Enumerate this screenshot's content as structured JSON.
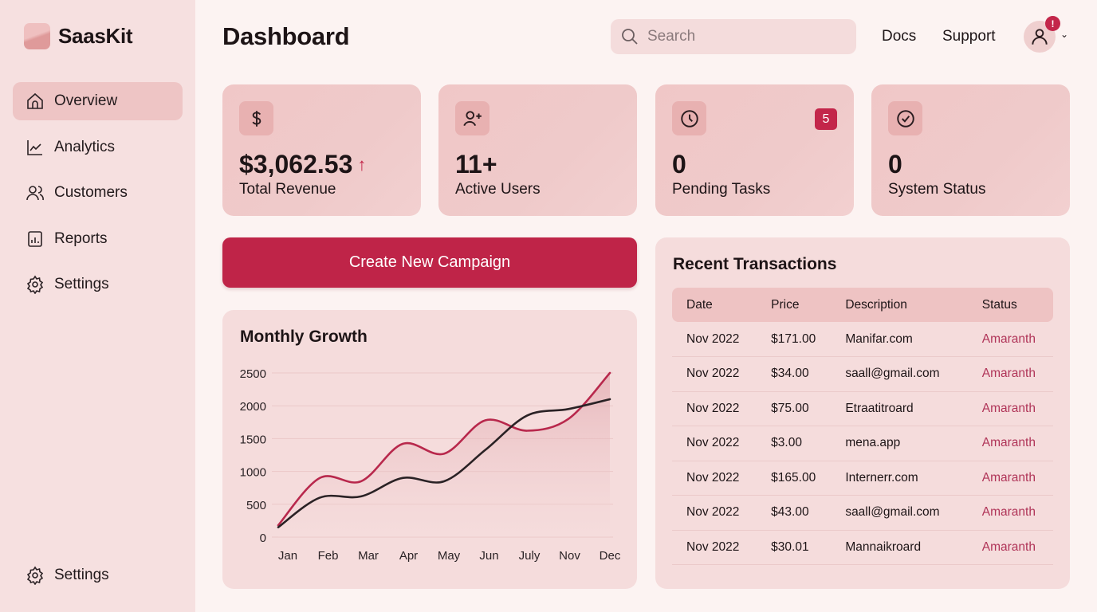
{
  "app": {
    "name": "SaasKit"
  },
  "sidebar": {
    "items": [
      {
        "label": "Overview",
        "icon": "home-icon",
        "active": true
      },
      {
        "label": "Analytics",
        "icon": "line-chart-icon"
      },
      {
        "label": "Customers",
        "icon": "users-icon"
      },
      {
        "label": "Reports",
        "icon": "report-icon"
      },
      {
        "label": "Settings",
        "icon": "gear-icon"
      }
    ],
    "bottom": {
      "label": "Settings",
      "icon": "gear-icon"
    }
  },
  "header": {
    "title": "Dashboard",
    "search_placeholder": "Search",
    "links": [
      "Docs",
      "Support"
    ],
    "notification_badge": "!"
  },
  "stats": [
    {
      "value": "$3,062.53",
      "label": "Total Revenue",
      "icon": "dollar-icon",
      "trend": "↑"
    },
    {
      "value": "11+",
      "label": "Active Users",
      "icon": "user-plus-icon"
    },
    {
      "value": "0",
      "label": "Pending Tasks",
      "icon": "clock-icon",
      "badge": "5"
    },
    {
      "value": "0",
      "label": "System Status",
      "icon": "check-circle-icon"
    }
  ],
  "cta": {
    "label": "Create New Campaign"
  },
  "colors": {
    "accent": "#bf2448",
    "sidebar": "#f6e0e0",
    "card": "#f0c7c7"
  },
  "chart_data": {
    "type": "line",
    "title": "Monthly Growth",
    "categories": [
      "Jan",
      "Feb",
      "Mar",
      "Apr",
      "May",
      "Jun",
      "July",
      "Nov",
      "Dec"
    ],
    "series": [
      {
        "color": "#b8284c",
        "values": [
          180,
          900,
          850,
          1420,
          1270,
          1780,
          1620,
          1800,
          2500
        ]
      },
      {
        "color": "#2a2225",
        "values": [
          150,
          600,
          620,
          900,
          850,
          1330,
          1850,
          1950,
          2100
        ]
      }
    ],
    "yticks": [
      0,
      500,
      1000,
      1500,
      2000,
      2500
    ],
    "ylim": [
      0,
      2500
    ],
    "grid": true
  },
  "transactions": {
    "title": "Recent Transactions",
    "columns": [
      "Date",
      "Price",
      "Description",
      "Status"
    ],
    "rows": [
      [
        "Nov 2022",
        "$171.00",
        "Manifar.com",
        "Amaranth"
      ],
      [
        "Nov 2022",
        "$34.00",
        "saall@gmail.com",
        "Amaranth"
      ],
      [
        "Nov 2022",
        "$75.00",
        "Etraatitroard",
        "Amaranth"
      ],
      [
        "Nov 2022",
        "$3.00",
        "mena.app",
        "Amaranth"
      ],
      [
        "Nov 2022",
        "$165.00",
        "Internerr.com",
        "Amaranth"
      ],
      [
        "Nov 2022",
        "$43.00",
        "saall@gmail.com",
        "Amaranth"
      ],
      [
        "Nov 2022",
        "$30.01",
        "Mannaikroard",
        "Amaranth"
      ]
    ]
  }
}
